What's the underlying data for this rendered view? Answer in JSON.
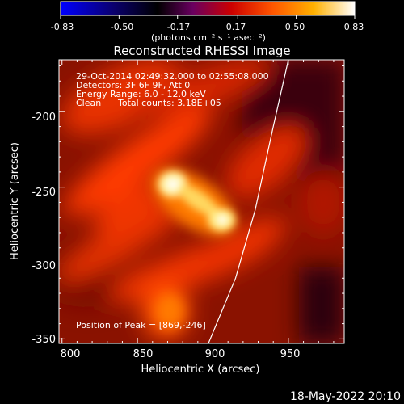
{
  "colorbar": {
    "ticks": [
      "-0.83",
      "-0.50",
      "-0.17",
      "0.17",
      "0.50",
      "0.83"
    ],
    "units": "(photons cm⁻² s⁻¹ asec⁻²)",
    "range": [
      -0.83,
      0.83
    ]
  },
  "chart_data": {
    "type": "heatmap",
    "title": "Reconstructed RHESSI Image",
    "xlabel": "Heliocentric X (arcsec)",
    "ylabel": "Heliocentric Y (arcsec)",
    "xlim": [
      798,
      987
    ],
    "ylim": [
      -353,
      -166
    ],
    "x_ticks": [
      "800",
      "850",
      "900",
      "950"
    ],
    "y_ticks": [
      "-200",
      "-250",
      "-300",
      "-350"
    ],
    "x_tick_values": [
      800,
      850,
      900,
      950
    ],
    "y_tick_values": [
      -200,
      -250,
      -300,
      -350
    ],
    "annotations": {
      "time": "29-Oct-2014 02:49:32.000 to 02:55:08.000",
      "detectors": "Detectors: 3F 6F 9F, Att 0",
      "energy": "Energy Range: 6.0 - 12.0 keV",
      "method": "Clean",
      "counts": "Total counts: 3.18E+05",
      "peak": "Position of Peak = [869,-246]"
    },
    "peak": [
      869,
      -246
    ],
    "limb_curve": [
      [
        897,
        -353
      ],
      [
        915,
        -310
      ],
      [
        928,
        -265
      ],
      [
        940,
        -210
      ],
      [
        950,
        -166
      ]
    ],
    "colors": {
      "background": "#000000",
      "low": "#8b0000",
      "mid": "#ff2a00",
      "high": "#ffffff"
    }
  },
  "footer": {
    "date": "18-May-2022 20:10"
  }
}
